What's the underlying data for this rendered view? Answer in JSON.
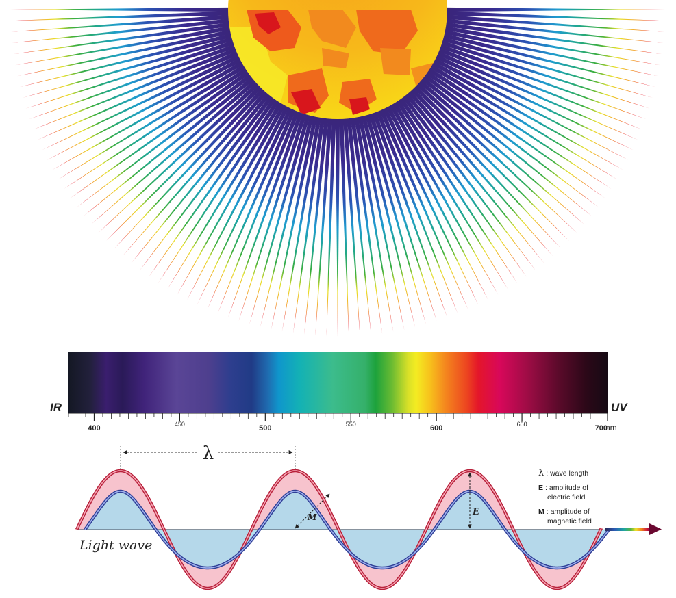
{
  "spectrum": {
    "left_label": "IR",
    "right_label": "UV",
    "unit": "nm",
    "tick_start": 385,
    "tick_end": 700,
    "tick_step": 5,
    "major_labels": [
      400,
      500,
      600,
      700
    ],
    "minor_labels": [
      450,
      550,
      650
    ]
  },
  "wave": {
    "lambda_symbol": "λ",
    "caption": "Light wave",
    "e_marker": "E",
    "m_marker": "M",
    "electric_color": "#e8475f",
    "electric_fill": "#f6b4c0",
    "magnetic_color": "#4a5fc2",
    "magnetic_fill": "#a8dcee"
  },
  "legend": {
    "lambda_symbol": "λ",
    "lambda_text": ": wave length",
    "e_symbol": "E",
    "e_text_1": ": amplitude of",
    "e_text_2": "electric field",
    "m_symbol": "M",
    "m_text_1": ": amplitude of",
    "m_text_2": "magnetic field"
  },
  "sun": {
    "ray_colors": [
      "#3b2a8a",
      "#2f49a8",
      "#1f8fc8",
      "#18a6a0",
      "#2eaa4a",
      "#f2e62a",
      "#f08a1e",
      "#e41f36"
    ]
  }
}
